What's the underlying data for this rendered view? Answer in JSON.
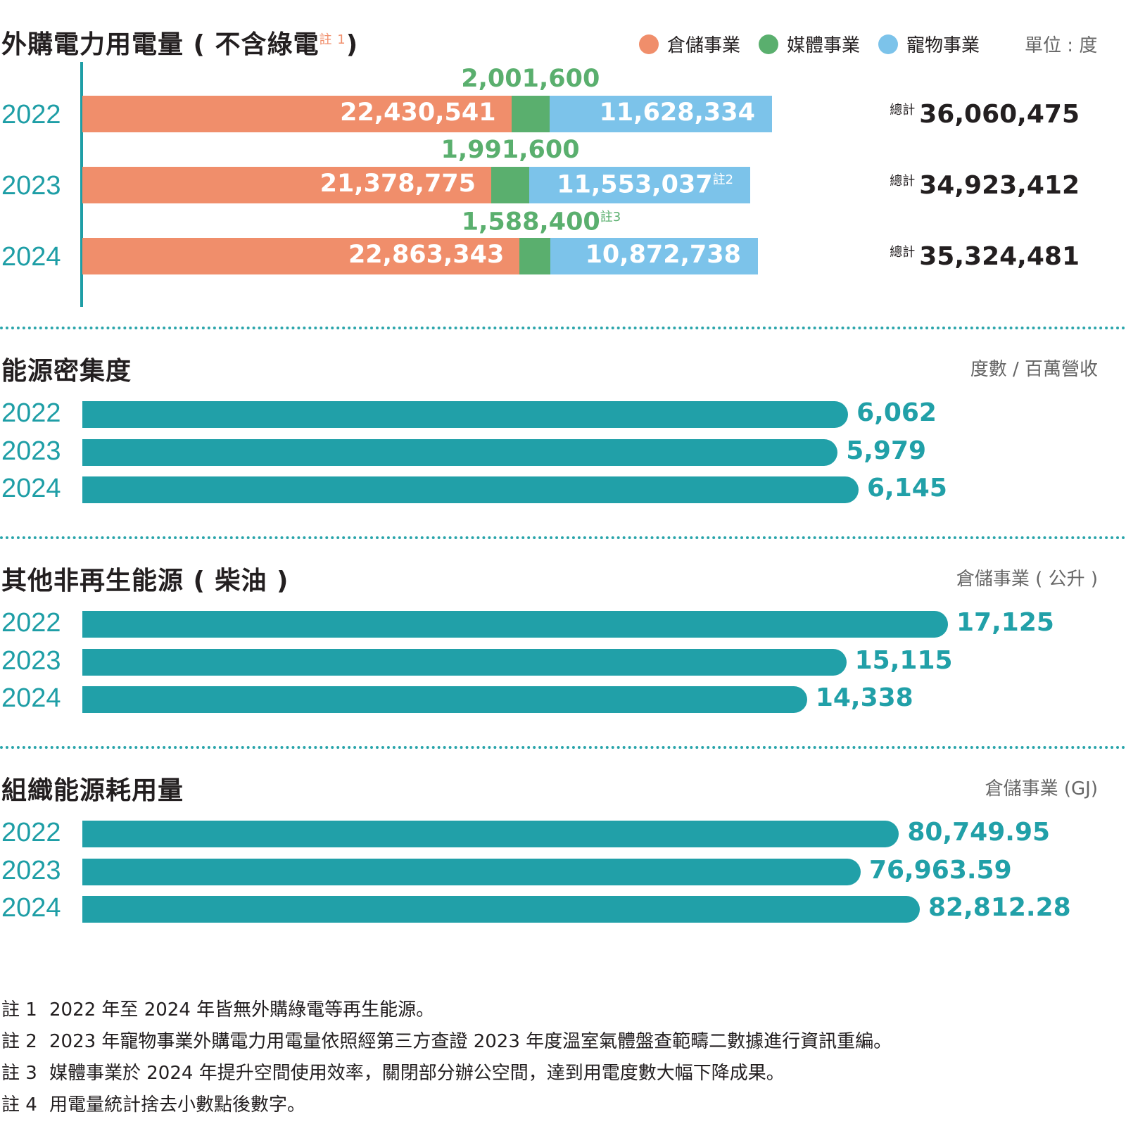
{
  "section1": {
    "title": "外購電力用電量 ( 不含綠電",
    "title_sup": "註 1",
    "title_close": ")",
    "legend": [
      {
        "label": "倉儲事業",
        "color": "#f08e6b"
      },
      {
        "label": "媒體事業",
        "color": "#5aaf6e"
      },
      {
        "label": "寵物事業",
        "color": "#7cc3ea"
      }
    ],
    "unit": "單位 : 度",
    "total_label": "總計"
  },
  "section2": {
    "title": "能源密集度",
    "unit": "度數 / 百萬營收"
  },
  "section3": {
    "title": "其他非再生能源 ( 柴油 )",
    "unit": "倉儲事業 ( 公升 )"
  },
  "section4": {
    "title": "組織能源耗用量",
    "unit": "倉儲事業 (GJ)"
  },
  "chart_data": [
    {
      "type": "bar",
      "stacked": true,
      "orientation": "horizontal",
      "title": "外購電力用電量 ( 不含綠電 註 1 )",
      "unit": "單位 : 度",
      "categories": [
        "2022",
        "2023",
        "2024"
      ],
      "series": [
        {
          "name": "倉儲事業",
          "color": "#f08e6b",
          "values": [
            22430541,
            21378775,
            22863343
          ],
          "labels": [
            "22,430,541",
            "21,378,775",
            "22,863,343"
          ],
          "notes": [
            "",
            "",
            ""
          ]
        },
        {
          "name": "媒體事業",
          "color": "#5aaf6e",
          "values": [
            2001600,
            1991600,
            1588400
          ],
          "labels": [
            "2,001,600",
            "1,991,600",
            "1,588,400"
          ],
          "notes": [
            "",
            "",
            "註3"
          ]
        },
        {
          "name": "寵物事業",
          "color": "#7cc3ea",
          "values": [
            11628334,
            11553037,
            10872738
          ],
          "labels": [
            "11,628,334",
            "11,553,037",
            "10,872,738"
          ],
          "notes": [
            "",
            "註2",
            ""
          ]
        }
      ],
      "totals": [
        36060475,
        34923412,
        35324481
      ],
      "total_labels": [
        "36,060,475",
        "34,923,412",
        "35,324,481"
      ]
    },
    {
      "type": "bar",
      "orientation": "horizontal",
      "title": "能源密集度",
      "unit": "度數 / 百萬營收",
      "categories": [
        "2022",
        "2023",
        "2024"
      ],
      "values": [
        6062,
        5979,
        6145
      ],
      "labels": [
        "6,062",
        "5,979",
        "6,145"
      ],
      "color": "#21a0a8"
    },
    {
      "type": "bar",
      "orientation": "horizontal",
      "title": "其他非再生能源 ( 柴油 )",
      "unit": "倉儲事業 ( 公升 )",
      "categories": [
        "2022",
        "2023",
        "2024"
      ],
      "values": [
        17125,
        15115,
        14338
      ],
      "labels": [
        "17,125",
        "15,115",
        "14,338"
      ],
      "color": "#21a0a8"
    },
    {
      "type": "bar",
      "orientation": "horizontal",
      "title": "組織能源耗用量",
      "unit": "倉儲事業 (GJ)",
      "categories": [
        "2022",
        "2023",
        "2024"
      ],
      "values": [
        80749.95,
        76963.59,
        82812.28
      ],
      "labels": [
        "80,749.95",
        "76,963.59",
        "82,812.28"
      ],
      "color": "#21a0a8"
    }
  ],
  "notes": [
    {
      "label": "註 1",
      "text": "2022 年至 2024 年皆無外購綠電等再生能源。"
    },
    {
      "label": "註 2",
      "text": "2023 年寵物事業外購電力用電量依照經第三方查證 2023 年度溫室氣體盤查範疇二數據進行資訊重編。"
    },
    {
      "label": "註 3",
      "text": "媒體事業於 2024 年提升空間使用效率，關閉部分辦公空間，達到用電度數大幅下降成果。"
    },
    {
      "label": "註 4",
      "text": "用電量統計捨去小數點後數字。"
    }
  ]
}
